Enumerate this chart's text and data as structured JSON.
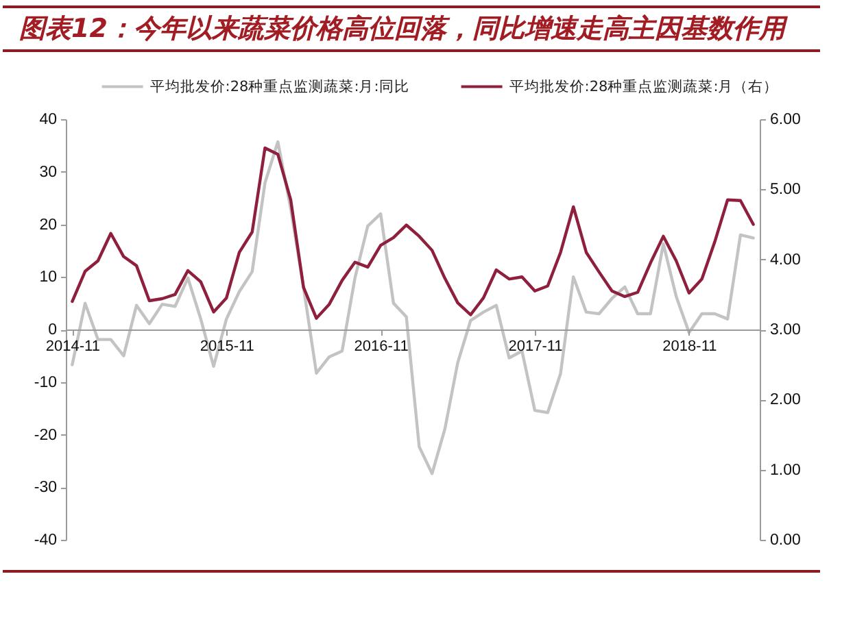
{
  "chart_data": {
    "type": "line",
    "title": "图表12：今年以来蔬菜价格高位回落，同比增速走高主因基数作用",
    "categories": [
      "2014-11",
      null,
      null,
      null,
      null,
      null,
      null,
      null,
      null,
      null,
      null,
      null,
      "2015-11",
      null,
      null,
      null,
      null,
      null,
      null,
      null,
      null,
      null,
      null,
      null,
      "2016-11",
      null,
      null,
      null,
      null,
      null,
      null,
      null,
      null,
      null,
      null,
      null,
      "2017-11",
      null,
      null,
      null,
      null,
      null,
      null,
      null,
      null,
      null,
      null,
      null,
      "2018-11",
      null,
      null,
      null,
      null,
      null
    ],
    "series": [
      {
        "name": "平均批发价:28种重点监测蔬菜:月:同比",
        "color": "#c3c3c3",
        "values": [
          -6.7,
          5.0,
          -1.9,
          -1.9,
          -5.0,
          4.6,
          1.1,
          4.8,
          4.4,
          9.8,
          2.0,
          -7.0,
          2.0,
          7.2,
          11.0,
          27.9,
          35.7,
          23.0,
          8.0,
          -8.3,
          -5.2,
          -4.1,
          9.8,
          19.7,
          22.0,
          5.0,
          2.4,
          -22.3,
          -27.4,
          -18.9,
          -6.3,
          1.7,
          3.3,
          4.6,
          -5.4,
          -4.1,
          -15.4,
          -15.8,
          -8.4,
          10.0,
          3.3,
          3.0,
          5.9,
          8.1,
          3.0,
          3.0,
          16.3,
          6.3,
          -0.6,
          3.0,
          3.0,
          2.0,
          18.0,
          17.4
        ]
      },
      {
        "name": "平均批发价:28种重点监测蔬菜:月（右）",
        "color": "#8e1f3d",
        "axis": "y2",
        "values": [
          3.4,
          3.83,
          3.98,
          4.37,
          4.04,
          3.91,
          3.41,
          3.44,
          3.5,
          3.84,
          3.68,
          3.25,
          3.45,
          4.1,
          4.39,
          5.59,
          5.5,
          4.85,
          3.6,
          3.16,
          3.36,
          3.7,
          3.96,
          3.89,
          4.2,
          4.31,
          4.49,
          4.33,
          4.13,
          3.73,
          3.38,
          3.21,
          3.45,
          3.85,
          3.72,
          3.75,
          3.55,
          3.62,
          4.1,
          4.75,
          4.1,
          3.82,
          3.55,
          3.47,
          3.53,
          3.95,
          4.33,
          3.98,
          3.52,
          3.72,
          4.25,
          4.85,
          4.84,
          4.5
        ]
      }
    ],
    "ylim": [
      -40,
      40
    ],
    "yticks": [
      -40,
      -30,
      -20,
      -10,
      0,
      10,
      20,
      30,
      40
    ],
    "y2lim": [
      0,
      6
    ],
    "y2ticks": [
      {
        "value": 0,
        "label": "0.00"
      },
      {
        "value": 1,
        "label": "1.00"
      },
      {
        "value": 2,
        "label": "2.00"
      },
      {
        "value": 3,
        "label": "3.00"
      },
      {
        "value": 4,
        "label": "4.00"
      },
      {
        "value": 5,
        "label": "5.00"
      },
      {
        "value": 6,
        "label": "6.00"
      }
    ],
    "legend": "top"
  }
}
